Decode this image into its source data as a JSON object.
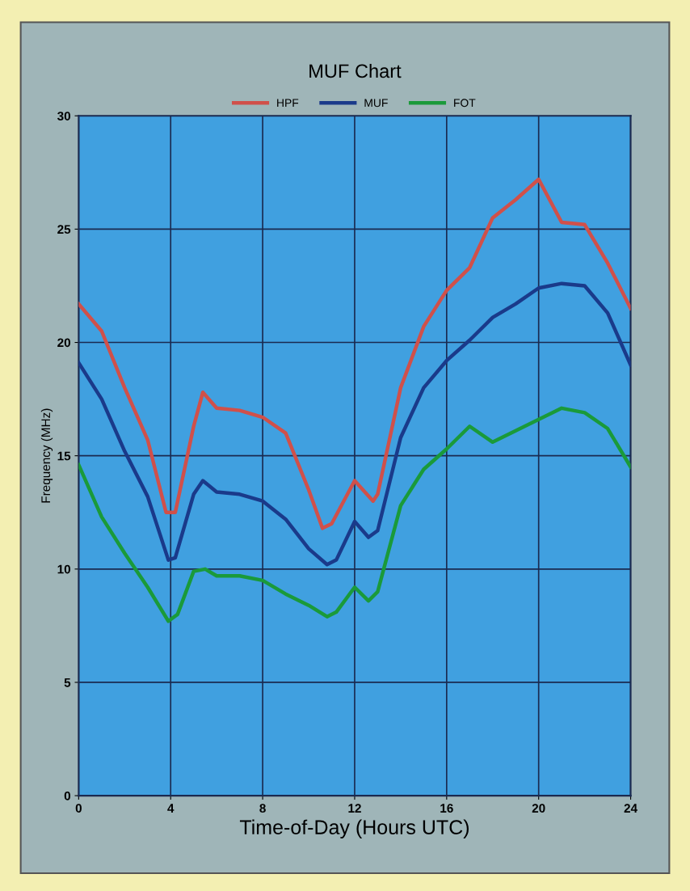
{
  "chart_data": {
    "type": "line",
    "title": "MUF Chart",
    "xlabel": "Time-of-Day (Hours UTC)",
    "ylabel": "Frequency (MHz)",
    "xlim": [
      0,
      24
    ],
    "xticks": [
      0,
      4,
      8,
      12,
      16,
      20,
      24
    ],
    "ylim": [
      0,
      30
    ],
    "yticks": [
      0,
      5,
      10,
      15,
      20,
      25,
      30
    ],
    "grid": true,
    "legend": "top",
    "marker": "none",
    "line_style": "solid",
    "series": [
      {
        "name": "HPF",
        "color": "#d0504a",
        "x": [
          0,
          1,
          2,
          3,
          3.8,
          4.2,
          5,
          5.4,
          6,
          7,
          8,
          9,
          10,
          10.6,
          11,
          12,
          12.8,
          13,
          14,
          15,
          16,
          17,
          18,
          19,
          20,
          21,
          22,
          23,
          24
        ],
        "values": [
          21.7,
          20.5,
          18,
          15.7,
          12.5,
          12.5,
          16.3,
          17.8,
          17.1,
          17.0,
          16.7,
          16.0,
          13.5,
          11.8,
          12,
          13.9,
          13.0,
          13.3,
          18,
          20.7,
          22.3,
          23.3,
          25.5,
          26.3,
          27.2,
          25.3,
          25.2,
          23.5,
          21.5
        ]
      },
      {
        "name": "MUF",
        "color": "#1a3a8a",
        "x": [
          0,
          1,
          2,
          3,
          3.9,
          4.2,
          5,
          5.4,
          6,
          7,
          8,
          9,
          10,
          10.8,
          11.2,
          12,
          12.6,
          13,
          14,
          15,
          16,
          17,
          18,
          19,
          20,
          21,
          22,
          23,
          24
        ],
        "values": [
          19.1,
          17.5,
          15.2,
          13.2,
          10.4,
          10.5,
          13.3,
          13.9,
          13.4,
          13.3,
          13.0,
          12.2,
          10.9,
          10.2,
          10.4,
          12.1,
          11.4,
          11.7,
          15.8,
          18.0,
          19.2,
          20.1,
          21.1,
          21.7,
          22.4,
          22.6,
          22.5,
          21.3,
          19.0
        ]
      },
      {
        "name": "FOT",
        "color": "#1a9a3a",
        "x": [
          0,
          1,
          2,
          3,
          3.9,
          4.3,
          5,
          5.5,
          6,
          7,
          8,
          9,
          10,
          10.8,
          11.2,
          12,
          12.6,
          13,
          14,
          15,
          16,
          17,
          18,
          19,
          20,
          21,
          22,
          23,
          24
        ],
        "values": [
          14.6,
          12.3,
          10.7,
          9.2,
          7.7,
          8.0,
          9.9,
          10.0,
          9.7,
          9.7,
          9.5,
          8.9,
          8.4,
          7.9,
          8.1,
          9.2,
          8.6,
          9.0,
          12.8,
          14.4,
          15.3,
          16.3,
          15.6,
          16.1,
          16.6,
          17.1,
          16.9,
          16.2,
          14.5
        ]
      }
    ]
  }
}
